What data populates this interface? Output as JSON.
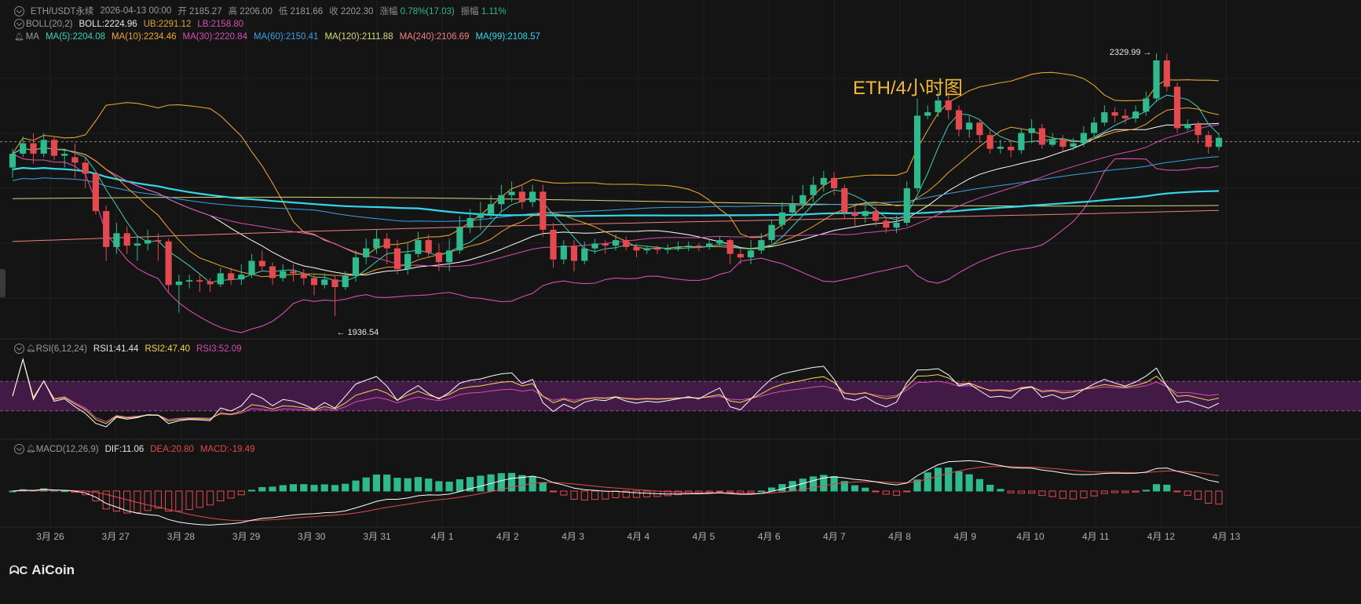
{
  "header": {
    "symbol_line": {
      "symbol": "ETH/USDT永续",
      "datetime": "2026-04-13 00:00",
      "open_label": "开",
      "open": "2185.27",
      "high_label": "高",
      "high": "2206.00",
      "low_label": "低",
      "low": "2181.66",
      "close_label": "收",
      "close": "2202.30",
      "change_label": "涨幅",
      "change": "0.78%(17.03)",
      "amp_label": "振幅",
      "amp": "1.11%"
    },
    "boll": {
      "name": "BOLL(20,2)",
      "boll": "BOLL:2224.96",
      "ub": "UB:2291.12",
      "lb": "LB:2158.80"
    },
    "ma": {
      "name": "MA",
      "items": [
        {
          "text": "MA(5):2204.08",
          "color": "#3fd0b5"
        },
        {
          "text": "MA(10):2234.46",
          "color": "#f0a52f"
        },
        {
          "text": "MA(30):2220.84",
          "color": "#d54fb1"
        },
        {
          "text": "MA(60):2150.41",
          "color": "#3ca0e6"
        },
        {
          "text": "MA(120):2111.88",
          "color": "#d8d87a"
        },
        {
          "text": "MA(240):2106.69",
          "color": "#f08080"
        },
        {
          "text": "MA(99):2108.57",
          "color": "#35d6ea"
        }
      ]
    },
    "rsi": {
      "name": "RSI(6,12,24)",
      "rsi1": "RSI1:41.44",
      "rsi2": "RSI2:47.40",
      "rsi3": "RSI3:52.09"
    },
    "macd": {
      "name": "MACD(12,26,9)",
      "dif": "DIF:11.06",
      "dea": "DEA:20.80",
      "macd": "MACD:-19.49"
    }
  },
  "chart_title": "ETH/4小时图",
  "logo_text": "AiCoin",
  "colors": {
    "up": "#2fb98c",
    "down": "#e24a4f",
    "boll_band": "#e3a230",
    "boll_mid": "#ffffff",
    "ma5": "#3fd0b5",
    "ma10": "#f0a52f",
    "ma30": "#d54fb1",
    "ma60": "#3ca0e6",
    "ma120": "#d8d87a",
    "ma240": "#f08080",
    "ma99": "#35d6ea",
    "rsi1": "#ffffff",
    "rsi2": "#f5d84a",
    "rsi3": "#d54fb1",
    "rsi_band": "#4a1b4f",
    "dif": "#ffffff",
    "dea": "#e24a4f"
  },
  "chart_data": {
    "type": "candlestick",
    "timeframe": "4h",
    "x_tick_labels": [
      "3月 26",
      "3月 27",
      "3月 28",
      "3月 29",
      "3月 30",
      "3月 31",
      "4月 1",
      "4月 2",
      "4月 3",
      "4月 4",
      "4月 5",
      "4月 6",
      "4月 7",
      "4月 8",
      "4月 9",
      "4月 10",
      "4月 11",
      "4月 12",
      "4月 13"
    ],
    "annotations": [
      {
        "text": "2329.99",
        "value": 2329.99,
        "kind": "high"
      },
      {
        "text": "1936.54",
        "value": 1936.54,
        "kind": "low"
      }
    ],
    "last_close": 2202.3,
    "candles": [
      [
        2165,
        2185,
        2150,
        2192
      ],
      [
        2185,
        2200,
        2180,
        2210
      ],
      [
        2200,
        2185,
        2170,
        2215
      ],
      [
        2185,
        2205,
        2180,
        2215
      ],
      [
        2205,
        2182,
        2176,
        2210
      ],
      [
        2182,
        2185,
        2165,
        2190
      ],
      [
        2180,
        2172,
        2150,
        2200
      ],
      [
        2172,
        2156,
        2135,
        2180
      ],
      [
        2156,
        2102,
        2097,
        2160
      ],
      [
        2102,
        2050,
        2030,
        2110
      ],
      [
        2050,
        2070,
        2040,
        2085
      ],
      [
        2070,
        2052,
        2040,
        2080
      ],
      [
        2052,
        2055,
        2030,
        2065
      ],
      [
        2055,
        2060,
        2045,
        2075
      ],
      [
        2060,
        2058,
        2030,
        2070
      ],
      [
        2058,
        1995,
        1985,
        2062
      ],
      [
        1995,
        2000,
        1955,
        2010
      ],
      [
        2000,
        2002,
        1990,
        2010
      ],
      [
        2002,
        2000,
        1985,
        2010
      ],
      [
        2000,
        1996,
        1985,
        2005
      ],
      [
        1996,
        2012,
        1992,
        2020
      ],
      [
        2012,
        2003,
        1995,
        2020
      ],
      [
        2003,
        2010,
        1995,
        2025
      ],
      [
        2010,
        2030,
        2005,
        2040
      ],
      [
        2030,
        2022,
        2015,
        2045
      ],
      [
        2022,
        2005,
        1995,
        2028
      ],
      [
        2005,
        2015,
        2000,
        2025
      ],
      [
        2015,
        2012,
        2000,
        2025
      ],
      [
        2012,
        2005,
        1995,
        2018
      ],
      [
        2005,
        1995,
        1980,
        2010
      ],
      [
        1995,
        2003,
        1990,
        2012
      ],
      [
        2003,
        1992,
        1950,
        2008
      ],
      [
        1992,
        2008,
        1988,
        2015
      ],
      [
        2008,
        2035,
        2000,
        2045
      ],
      [
        2035,
        2048,
        2025,
        2062
      ],
      [
        2048,
        2062,
        2040,
        2075
      ],
      [
        2062,
        2048,
        2025,
        2070
      ],
      [
        2048,
        2018,
        2010,
        2060
      ],
      [
        2018,
        2040,
        2010,
        2055
      ],
      [
        2040,
        2060,
        2035,
        2072
      ],
      [
        2060,
        2042,
        2035,
        2068
      ],
      [
        2042,
        2028,
        2015,
        2055
      ],
      [
        2028,
        2045,
        2015,
        2062
      ],
      [
        2045,
        2078,
        2040,
        2095
      ],
      [
        2078,
        2092,
        2070,
        2105
      ],
      [
        2092,
        2098,
        2075,
        2115
      ],
      [
        2098,
        2112,
        2090,
        2125
      ],
      [
        2112,
        2125,
        2100,
        2140
      ],
      [
        2125,
        2130,
        2115,
        2145
      ],
      [
        2130,
        2115,
        2105,
        2140
      ],
      [
        2115,
        2130,
        2108,
        2140
      ],
      [
        2130,
        2075,
        2065,
        2140
      ],
      [
        2075,
        2032,
        2020,
        2085
      ],
      [
        2032,
        2052,
        2025,
        2060
      ],
      [
        2052,
        2030,
        2015,
        2060
      ],
      [
        2030,
        2048,
        2025,
        2058
      ],
      [
        2048,
        2055,
        2040,
        2062
      ],
      [
        2055,
        2052,
        2040,
        2060
      ],
      [
        2052,
        2060,
        2045,
        2068
      ],
      [
        2060,
        2050,
        2045,
        2065
      ],
      [
        2050,
        2045,
        2035,
        2055
      ],
      [
        2045,
        2048,
        2040,
        2052
      ],
      [
        2048,
        2046,
        2040,
        2052
      ],
      [
        2046,
        2048,
        2040,
        2054
      ],
      [
        2048,
        2050,
        2044,
        2058
      ],
      [
        2050,
        2052,
        2044,
        2058
      ],
      [
        2052,
        2050,
        2044,
        2056
      ],
      [
        2050,
        2055,
        2046,
        2060
      ],
      [
        2055,
        2060,
        2050,
        2065
      ],
      [
        2060,
        2040,
        2025,
        2062
      ],
      [
        2040,
        2035,
        2025,
        2048
      ],
      [
        2035,
        2045,
        2025,
        2060
      ],
      [
        2045,
        2060,
        2040,
        2070
      ],
      [
        2060,
        2082,
        2055,
        2090
      ],
      [
        2082,
        2100,
        2075,
        2115
      ],
      [
        2100,
        2112,
        2095,
        2125
      ],
      [
        2112,
        2125,
        2105,
        2140
      ],
      [
        2125,
        2140,
        2115,
        2152
      ],
      [
        2140,
        2150,
        2130,
        2160
      ],
      [
        2150,
        2135,
        2125,
        2158
      ],
      [
        2135,
        2100,
        2090,
        2140
      ],
      [
        2100,
        2095,
        2080,
        2110
      ],
      [
        2095,
        2102,
        2085,
        2110
      ],
      [
        2102,
        2088,
        2080,
        2108
      ],
      [
        2088,
        2078,
        2070,
        2092
      ],
      [
        2078,
        2085,
        2070,
        2095
      ],
      [
        2085,
        2135,
        2080,
        2145
      ],
      [
        2135,
        2240,
        2130,
        2265
      ],
      [
        2240,
        2245,
        2235,
        2255
      ],
      [
        2245,
        2262,
        2238,
        2275
      ],
      [
        2262,
        2248,
        2235,
        2275
      ],
      [
        2248,
        2220,
        2210,
        2255
      ],
      [
        2220,
        2230,
        2208,
        2240
      ],
      [
        2230,
        2212,
        2200,
        2235
      ],
      [
        2212,
        2192,
        2185,
        2220
      ],
      [
        2192,
        2195,
        2185,
        2205
      ],
      [
        2195,
        2190,
        2180,
        2205
      ],
      [
        2190,
        2215,
        2185,
        2222
      ],
      [
        2215,
        2222,
        2200,
        2235
      ],
      [
        2222,
        2198,
        2192,
        2228
      ],
      [
        2198,
        2205,
        2195,
        2215
      ],
      [
        2205,
        2195,
        2188,
        2212
      ],
      [
        2195,
        2200,
        2190,
        2208
      ],
      [
        2200,
        2215,
        2195,
        2225
      ],
      [
        2215,
        2230,
        2210,
        2238
      ],
      [
        2230,
        2245,
        2225,
        2255
      ],
      [
        2245,
        2240,
        2230,
        2252
      ],
      [
        2240,
        2236,
        2228,
        2250
      ],
      [
        2236,
        2246,
        2230,
        2255
      ],
      [
        2246,
        2265,
        2240,
        2275
      ],
      [
        2265,
        2320,
        2260,
        2330
      ],
      [
        2320,
        2282,
        2275,
        2330
      ],
      [
        2282,
        2222,
        2215,
        2288
      ],
      [
        2222,
        2228,
        2218,
        2235
      ],
      [
        2228,
        2212,
        2200,
        2232
      ],
      [
        2212,
        2195,
        2185,
        2218
      ],
      [
        2195,
        2208,
        2190,
        2215
      ]
    ],
    "rsi_levels": [
      30,
      70
    ],
    "rsi_last": {
      "rsi1": 41.44,
      "rsi2": 47.4,
      "rsi3": 52.09
    },
    "macd_last": {
      "dif": 11.06,
      "dea": 20.8,
      "macd": -19.49
    }
  }
}
